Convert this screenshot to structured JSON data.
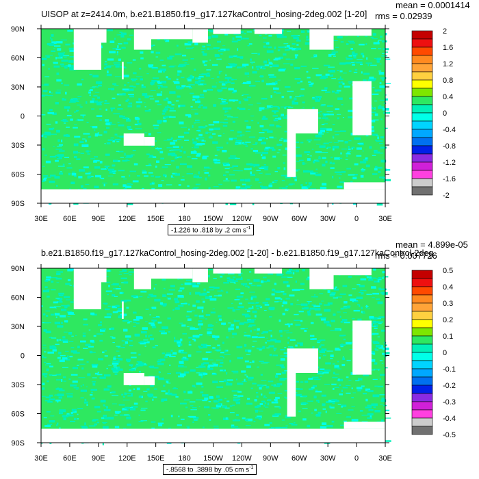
{
  "chart_data": [
    {
      "type": "heatmap",
      "title": "UISOP at z=2414.0m, b.e21.B1850.f19_g17.127kaControl_hosing-2deg.002 [1-20]",
      "mean_label": "mean = 0.0001414",
      "rms_label": "rms = 0.02939",
      "subtitle": "-1.226 to .818 by .2 cm s",
      "subtitle_exp": "-1",
      "x_ticks": [
        "30E",
        "60E",
        "90E",
        "120E",
        "150E",
        "180",
        "150W",
        "120W",
        "90W",
        "60W",
        "30W",
        "0",
        "30E"
      ],
      "y_ticks": [
        "90N",
        "60N",
        "30N",
        "0",
        "30S",
        "60S",
        "90S"
      ],
      "colorbar_labels": [
        "2",
        "1.6",
        "1.2",
        "0.8",
        "0.4",
        "0",
        "-0.4",
        "-0.8",
        "-1.2",
        "-1.6",
        "-2"
      ],
      "colorbar_colors": [
        "#c40000",
        "#ee1010",
        "#ff4a00",
        "#ff8a20",
        "#ffa438",
        "#ffd040",
        "#ffff00",
        "#7ee600",
        "#2ee860",
        "#00f0b8",
        "#00ffe8",
        "#00d4ff",
        "#00a8ff",
        "#0070f0",
        "#0020e8",
        "#8a2be2",
        "#d020d8",
        "#ff40e0",
        "#cccccc",
        "#707070"
      ]
    },
    {
      "type": "heatmap",
      "title": "b.e21.B1850.f19_g17.127kaControl_hosing-2deg.002 [1-20] - b.e21.B1850.f19_g17.127kaControl-2deg.",
      "mean_label": "mean = 4.899e-05",
      "rms_label": "rms = 0.007726",
      "subtitle": "-.8568 to .3898 by .05 cm s",
      "subtitle_exp": "-1",
      "x_ticks": [
        "30E",
        "60E",
        "90E",
        "120E",
        "150E",
        "180",
        "150W",
        "120W",
        "90W",
        "60W",
        "30W",
        "0",
        "30E"
      ],
      "y_ticks": [
        "90N",
        "60N",
        "30N",
        "0",
        "30S",
        "60S",
        "90S"
      ],
      "colorbar_labels": [
        "0.5",
        "0.4",
        "0.3",
        "0.2",
        "0.1",
        "0",
        "-0.1",
        "-0.2",
        "-0.3",
        "-0.4",
        "-0.5"
      ],
      "colorbar_colors": [
        "#c40000",
        "#ee1010",
        "#ff4a00",
        "#ff8a20",
        "#ffa438",
        "#ffd040",
        "#ffff00",
        "#7ee600",
        "#2ee860",
        "#00f0b8",
        "#00ffe8",
        "#00d4ff",
        "#00a8ff",
        "#0070f0",
        "#0020e8",
        "#8a2be2",
        "#d020d8",
        "#ff40e0",
        "#cccccc",
        "#707070"
      ]
    }
  ],
  "colors": {
    "field_base": "#2ee860",
    "field_dim": "#00f0b8",
    "field_bright": "#00ffe8",
    "land": "#ffffff"
  }
}
